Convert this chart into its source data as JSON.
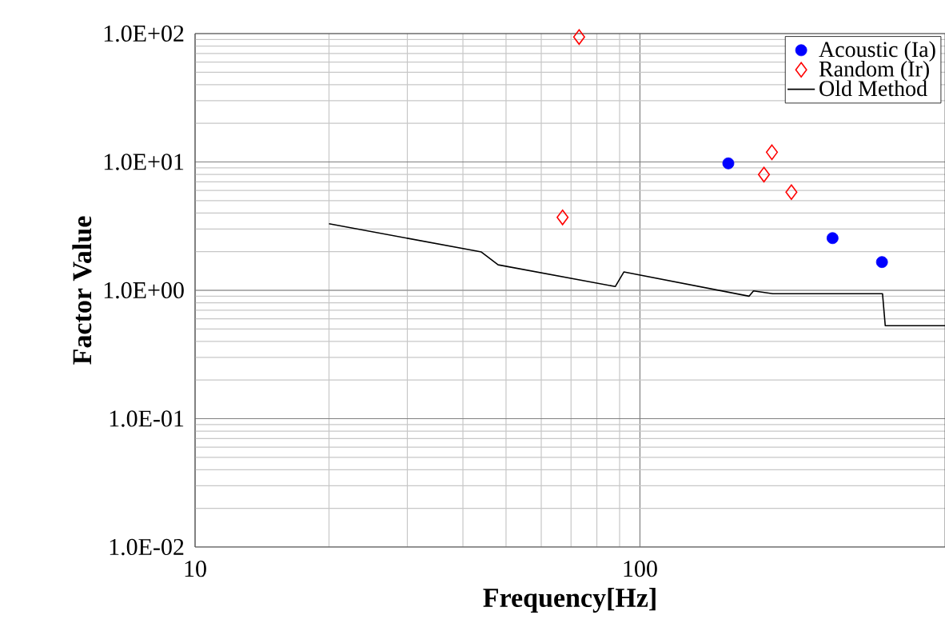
{
  "chart_data": {
    "type": "scatter",
    "xlabel": "Frequency[Hz]",
    "ylabel": "Factor Value",
    "log": "xy",
    "grid": true,
    "legend": "top right",
    "xlim": [
      10,
      485
    ],
    "xticks": [
      10,
      100
    ],
    "ylim": [
      0.01,
      100
    ],
    "yticks": [
      {
        "value": 0.01,
        "label": "1.0E-02"
      },
      {
        "value": 0.1,
        "label": "1.0E-01"
      },
      {
        "value": 1,
        "label": "1.0E+00"
      },
      {
        "value": 10,
        "label": "1.0E+01"
      },
      {
        "value": 100,
        "label": "1.0E+02"
      }
    ],
    "series": [
      {
        "name": "Acoustic (Ia)",
        "marker": "circle",
        "color": "#0000ff",
        "x": [
          158,
          271,
          350
        ],
        "values": [
          9.75,
          2.55,
          1.66
        ]
      },
      {
        "name": "Random (Ir)",
        "marker": "diamond",
        "color": "#ff0000",
        "x": [
          67,
          73,
          190,
          198,
          219
        ],
        "values": [
          3.7,
          94,
          7.97,
          11.9,
          5.82
        ]
      },
      {
        "name": "Old Method",
        "type": "line",
        "marker": "none",
        "color": "#000000",
        "x": [
          20,
          44,
          48,
          88,
          92,
          176,
          180,
          199,
          351,
          356,
          485
        ],
        "values": [
          3.3,
          1.99,
          1.58,
          1.07,
          1.39,
          0.9,
          0.99,
          0.94,
          0.94,
          0.53,
          0.53
        ]
      }
    ]
  }
}
